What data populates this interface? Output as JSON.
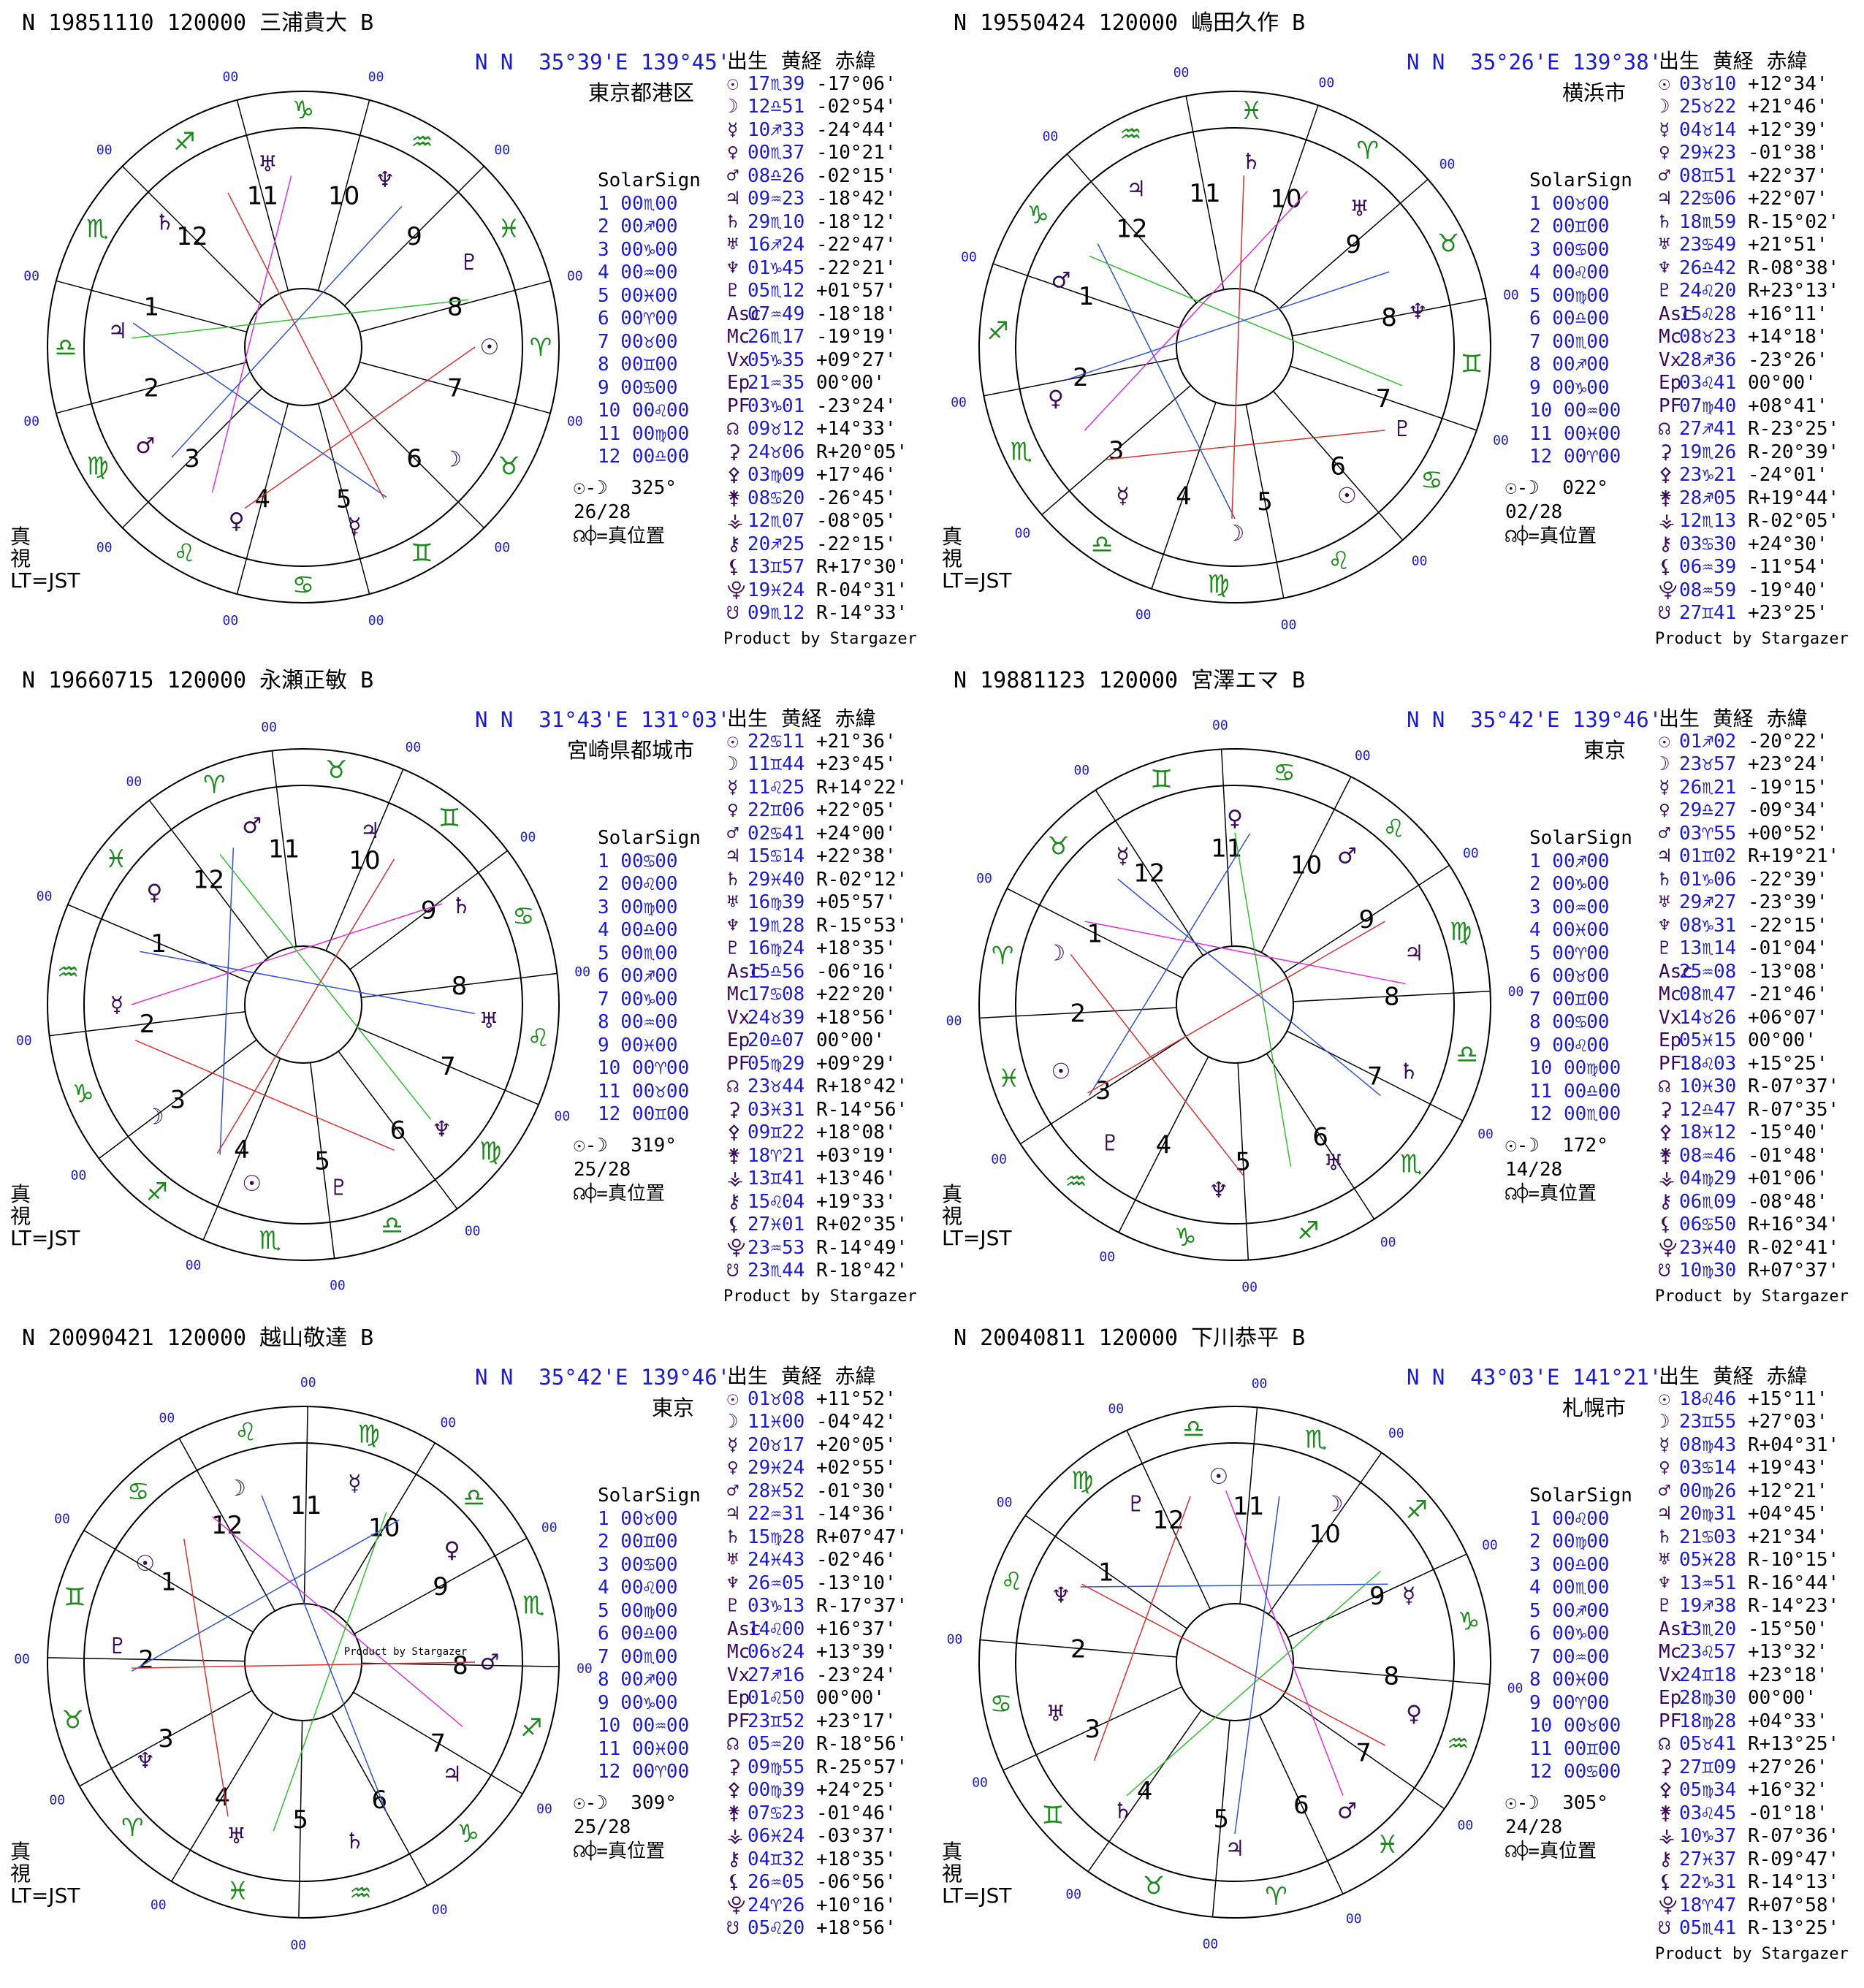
{
  "panels": [
    {
      "title": "N 19851110 120000 三浦貴大 B",
      "coords": "N N  35°39'E 139°45'",
      "place": "東京都港区",
      "houses_top": [
        "10",
        "9",
        "8",
        "7",
        "6",
        "5",
        "4",
        "3",
        "2",
        "1",
        "12",
        "11"
      ],
      "solar_header": "SolarSign",
      "solar": [
        "1 00♏00",
        "2 00♐00",
        "3 00♑00",
        "4 00♒00",
        "5 00♓00",
        "6 00♈00",
        "7 00♉00",
        "8 00♊00",
        "9 00♋00",
        "10 00♌00",
        "11 00♍00",
        "12 00♎00"
      ],
      "aspect": "☉-☽  325°",
      "aspect2": "26/28",
      "aspect3": "☊⌽=真位置",
      "truev": [
        "真",
        "視",
        "LT=JST"
      ],
      "table_head": "出生  黄経  赤緯",
      "rows": [
        [
          "☉",
          "17♏39",
          "-17°06'"
        ],
        [
          "☽",
          "12♎51",
          "-02°54'"
        ],
        [
          "☿",
          "10♐33",
          "-24°44'"
        ],
        [
          "♀",
          "00♏37",
          "-10°21'"
        ],
        [
          "♂",
          "08♎26",
          "-02°15'"
        ],
        [
          "♃",
          "09♒23",
          "-18°42'"
        ],
        [
          "♄",
          "29♏10",
          "-18°12'"
        ],
        [
          "♅",
          "16♐24",
          "-22°47'"
        ],
        [
          "♆",
          "01♑45",
          "-22°21'"
        ],
        [
          "♇",
          "05♏12",
          "+01°57'"
        ],
        [
          "Asc",
          "07♒49",
          "-18°18'"
        ],
        [
          "Mc",
          "26♏17",
          "-19°19'"
        ],
        [
          "Vx",
          "05♑35",
          "+09°27'"
        ],
        [
          "Ep",
          "21♒35",
          "00°00'"
        ],
        [
          "PF",
          "03♑01",
          "-23°24'"
        ],
        [
          "☊",
          "09♉12",
          "+14°33'"
        ],
        [
          "⚳",
          "24♉06",
          "R+20°05'"
        ],
        [
          "⚴",
          "03♍09",
          "+17°46'"
        ],
        [
          "⚵",
          "08♋20",
          "-26°45'"
        ],
        [
          "⚶",
          "12♏07",
          "-08°05'"
        ],
        [
          "⚷",
          "20♐25",
          "-22°15'"
        ],
        [
          "⚸",
          "13♊57",
          "R+17°30'"
        ],
        [
          "⯓",
          "19♓24",
          "R-04°31'"
        ],
        [
          "☋",
          "09♏12",
          "R-14°33'"
        ]
      ],
      "footer": "Product by Stargazer"
    },
    {
      "title": "N 19550424 120000 嶋田久作 B",
      "coords": "N N  35°26'E 139°38'",
      "place": "横浜市",
      "houses_top": [
        "10",
        "9",
        "8",
        "7",
        "6",
        "5",
        "4",
        "3",
        "2",
        "1",
        "12",
        "11"
      ],
      "solar_header": "SolarSign",
      "solar": [
        "1 00♉00",
        "2 00♊00",
        "3 00♋00",
        "4 00♌00",
        "5 00♍00",
        "6 00♎00",
        "7 00♏00",
        "8 00♐00",
        "9 00♑00",
        "10 00♒00",
        "11 00♓00",
        "12 00♈00"
      ],
      "aspect": "☉-☽  022°",
      "aspect2": "02/28",
      "aspect3": "☊⌽=真位置",
      "truev": [
        "真",
        "視",
        "LT=JST"
      ],
      "table_head": "出生  黄経  赤緯",
      "rows": [
        [
          "☉",
          "03♉10",
          "+12°34'"
        ],
        [
          "☽",
          "25♉22",
          "+21°46'"
        ],
        [
          "☿",
          "04♉14",
          "+12°39'"
        ],
        [
          "♀",
          "29♓23",
          "-01°38'"
        ],
        [
          "♂",
          "08♊51",
          "+22°37'"
        ],
        [
          "♃",
          "22♋06",
          "+22°07'"
        ],
        [
          "♄",
          "18♏59",
          "R-15°02'"
        ],
        [
          "♅",
          "23♋49",
          "+21°51'"
        ],
        [
          "♆",
          "26♎42",
          "R-08°38'"
        ],
        [
          "♇",
          "24♌20",
          "R+23°13'"
        ],
        [
          "Asc",
          "15♌28",
          "+16°11'"
        ],
        [
          "Mc",
          "08♉23",
          "+14°18'"
        ],
        [
          "Vx",
          "28♐36",
          "-23°26'"
        ],
        [
          "Ep",
          "03♌41",
          "00°00'"
        ],
        [
          "PF",
          "07♍40",
          "+08°41'"
        ],
        [
          "☊",
          "27♐41",
          "R-23°25'"
        ],
        [
          "⚳",
          "19♏26",
          "R-20°39'"
        ],
        [
          "⚴",
          "23♑21",
          "-24°01'"
        ],
        [
          "⚵",
          "28♐05",
          "R+19°44'"
        ],
        [
          "⚶",
          "12♏13",
          "R-02°05'"
        ],
        [
          "⚷",
          "03♋30",
          "+24°30'"
        ],
        [
          "⚸",
          "06♒39",
          "-11°54'"
        ],
        [
          "⯓",
          "08♒59",
          "-19°40'"
        ],
        [
          "☋",
          "27♊41",
          "+23°25'"
        ]
      ],
      "footer": "Product by Stargazer"
    },
    {
      "title": "N 19660715 120000 永瀬正敏 B",
      "coords": "N N  31°43'E 131°03'",
      "place": "宮崎県都城市",
      "houses_top": [
        "10",
        "9",
        "8",
        "7",
        "6",
        "5",
        "4",
        "3",
        "2",
        "1",
        "12",
        "11"
      ],
      "solar_header": "SolarSign",
      "solar": [
        "1 00♋00",
        "2 00♌00",
        "3 00♍00",
        "4 00♎00",
        "5 00♏00",
        "6 00♐00",
        "7 00♑00",
        "8 00♒00",
        "9 00♓00",
        "10 00♈00",
        "11 00♉00",
        "12 00♊00"
      ],
      "aspect": "☉-☽  319°",
      "aspect2": "25/28",
      "aspect3": "☊⌽=真位置",
      "truev": [
        "真",
        "視",
        "LT=JST"
      ],
      "table_head": "出生  黄経  赤緯",
      "rows": [
        [
          "☉",
          "22♋11",
          "+21°36'"
        ],
        [
          "☽",
          "11♊44",
          "+23°45'"
        ],
        [
          "☿",
          "11♌25",
          "R+14°22'"
        ],
        [
          "♀",
          "22♊06",
          "+22°05'"
        ],
        [
          "♂",
          "02♋41",
          "+24°00'"
        ],
        [
          "♃",
          "15♋14",
          "+22°38'"
        ],
        [
          "♄",
          "29♓40",
          "R-02°12'"
        ],
        [
          "♅",
          "16♍39",
          "+05°57'"
        ],
        [
          "♆",
          "19♏28",
          "R-15°53'"
        ],
        [
          "♇",
          "16♍24",
          "+18°35'"
        ],
        [
          "Asc",
          "15♎56",
          "-06°16'"
        ],
        [
          "Mc",
          "17♋08",
          "+22°20'"
        ],
        [
          "Vx",
          "24♉39",
          "+18°56'"
        ],
        [
          "Ep",
          "20♎07",
          "00°00'"
        ],
        [
          "PF",
          "05♍29",
          "+09°29'"
        ],
        [
          "☊",
          "23♉44",
          "R+18°42'"
        ],
        [
          "⚳",
          "03♓31",
          "R-14°56'"
        ],
        [
          "⚴",
          "09♊22",
          "+18°08'"
        ],
        [
          "⚵",
          "18♈21",
          "+03°19'"
        ],
        [
          "⚶",
          "13♊41",
          "+13°46'"
        ],
        [
          "⚷",
          "15♌04",
          "+19°33'"
        ],
        [
          "⚸",
          "27♓01",
          "R+02°35'"
        ],
        [
          "⯓",
          "23♒53",
          "R-14°49'"
        ],
        [
          "☋",
          "23♏44",
          "R-18°42'"
        ]
      ],
      "footer": "Product by Stargazer"
    },
    {
      "title": "N 19881123 120000 宮澤エマ B",
      "coords": "N N  35°42'E 139°46'",
      "place": "東京",
      "houses_top": [
        "10",
        "9",
        "8",
        "7",
        "6",
        "5",
        "4",
        "3",
        "2",
        "1",
        "12",
        "11"
      ],
      "solar_header": "SolarSign",
      "solar": [
        "1 00♐00",
        "2 00♑00",
        "3 00♒00",
        "4 00♓00",
        "5 00♈00",
        "6 00♉00",
        "7 00♊00",
        "8 00♋00",
        "9 00♌00",
        "10 00♍00",
        "11 00♎00",
        "12 00♏00"
      ],
      "aspect": "☉-☽  172°",
      "aspect2": "14/28",
      "aspect3": "☊⌽=真位置",
      "truev": [
        "真",
        "視",
        "LT=JST"
      ],
      "table_head": "出生  黄経  赤緯",
      "rows": [
        [
          "☉",
          "01♐02",
          "-20°22'"
        ],
        [
          "☽",
          "23♉57",
          "+23°24'"
        ],
        [
          "☿",
          "26♏21",
          "-19°15'"
        ],
        [
          "♀",
          "29♎27",
          "-09°34'"
        ],
        [
          "♂",
          "03♈55",
          "+00°52'"
        ],
        [
          "♃",
          "01♊02",
          "R+19°21'"
        ],
        [
          "♄",
          "01♑06",
          "-22°39'"
        ],
        [
          "♅",
          "29♐27",
          "-23°39'"
        ],
        [
          "♆",
          "08♑31",
          "-22°15'"
        ],
        [
          "♇",
          "13♏14",
          "-01°04'"
        ],
        [
          "Asc",
          "25♒08",
          "-13°08'"
        ],
        [
          "Mc",
          "08♏47",
          "-21°46'"
        ],
        [
          "Vx",
          "14♉26",
          "+06°07'"
        ],
        [
          "Ep",
          "05♓15",
          "00°00'"
        ],
        [
          "PF",
          "18♌03",
          "+15°25'"
        ],
        [
          "☊",
          "10♓30",
          "R-07°37'"
        ],
        [
          "⚳",
          "12♎47",
          "R-07°35'"
        ],
        [
          "⚴",
          "18♓12",
          "-15°40'"
        ],
        [
          "⚵",
          "08♒46",
          "-01°48'"
        ],
        [
          "⚶",
          "04♍29",
          "+01°06'"
        ],
        [
          "⚷",
          "06♏09",
          "-08°48'"
        ],
        [
          "⚸",
          "06♋50",
          "R+16°34'"
        ],
        [
          "⯓",
          "23♓40",
          "R-02°41'"
        ],
        [
          "☋",
          "10♍30",
          "R+07°37'"
        ]
      ],
      "footer": "Product by Stargazer"
    },
    {
      "title": "N 20090421 120000 越山敬達 B",
      "coords": "N N  35°42'E 139°46'",
      "place": "東京",
      "houses_top": [
        "10",
        "9",
        "8",
        "7",
        "6",
        "5",
        "4",
        "3",
        "2",
        "1",
        "12",
        "11"
      ],
      "solar_header": "SolarSign",
      "solar": [
        "1 00♉00",
        "2 00♊00",
        "3 00♋00",
        "4 00♌00",
        "5 00♍00",
        "6 00♎00",
        "7 00♏00",
        "8 00♐00",
        "9 00♑00",
        "10 00♒00",
        "11 00♓00",
        "12 00♈00"
      ],
      "aspect": "☉-☽  309°",
      "aspect2": "25/28",
      "aspect3": "☊⌽=真位置",
      "truev": [
        "真",
        "視",
        "LT=JST"
      ],
      "table_head": "出生  黄経  赤緯",
      "rows": [
        [
          "☉",
          "01♉08",
          "+11°52'"
        ],
        [
          "☽",
          "11♓00",
          "-04°42'"
        ],
        [
          "☿",
          "20♉17",
          "+20°05'"
        ],
        [
          "♀",
          "29♓24",
          "+02°55'"
        ],
        [
          "♂",
          "28♓52",
          "-01°30'"
        ],
        [
          "♃",
          "22♒31",
          "-14°36'"
        ],
        [
          "♄",
          "15♍28",
          "R+07°47'"
        ],
        [
          "♅",
          "24♓43",
          "-02°46'"
        ],
        [
          "♆",
          "26♒05",
          "-13°10'"
        ],
        [
          "♇",
          "03♑13",
          "R-17°37'"
        ],
        [
          "Asc",
          "14♌00",
          "+16°37'"
        ],
        [
          "Mc",
          "06♉24",
          "+13°39'"
        ],
        [
          "Vx",
          "27♐16",
          "-23°24'"
        ],
        [
          "Ep",
          "01♌50",
          "00°00'"
        ],
        [
          "PF",
          "23♊52",
          "+23°17'"
        ],
        [
          "☊",
          "05♒20",
          "R-18°56'"
        ],
        [
          "⚳",
          "09♍55",
          "R-25°57'"
        ],
        [
          "⚴",
          "00♍39",
          "+24°25'"
        ],
        [
          "⚵",
          "07♋23",
          "-01°46'"
        ],
        [
          "⚶",
          "06♓24",
          "-03°37'"
        ],
        [
          "⚷",
          "04♊32",
          "+18°35'"
        ],
        [
          "⚸",
          "26♒05",
          "-06°56'"
        ],
        [
          "⯓",
          "24♈26",
          "+10°16'"
        ],
        [
          "☋",
          "05♌20",
          "+18°56'"
        ]
      ],
      "footer": "",
      "inner_note": "Product by Stargazer"
    },
    {
      "title": "N 20040811 120000 下川恭平 B",
      "coords": "N N  43°03'E 141°21'",
      "place": "札幌市",
      "houses_top": [
        "10",
        "9",
        "8",
        "7",
        "6",
        "5",
        "4",
        "3",
        "2",
        "1",
        "12",
        "11"
      ],
      "solar_header": "SolarSign",
      "solar": [
        "1 00♌00",
        "2 00♍00",
        "3 00♎00",
        "4 00♏00",
        "5 00♐00",
        "6 00♑00",
        "7 00♒00",
        "8 00♓00",
        "9 00♈00",
        "10 00♉00",
        "11 00♊00",
        "12 00♋00"
      ],
      "aspect": "☉-☽  305°",
      "aspect2": "24/28",
      "aspect3": "☊⌽=真位置",
      "truev": [
        "真",
        "視",
        "LT=JST"
      ],
      "table_head": "出生  黄経  赤緯",
      "rows": [
        [
          "☉",
          "18♌46",
          "+15°11'"
        ],
        [
          "☽",
          "23♊55",
          "+27°03'"
        ],
        [
          "☿",
          "08♍43",
          "R+04°31'"
        ],
        [
          "♀",
          "03♋14",
          "+19°43'"
        ],
        [
          "♂",
          "00♍26",
          "+12°21'"
        ],
        [
          "♃",
          "20♍31",
          "+04°45'"
        ],
        [
          "♄",
          "21♋03",
          "+21°34'"
        ],
        [
          "♅",
          "05♓28",
          "R-10°15'"
        ],
        [
          "♆",
          "13♒51",
          "R-16°44'"
        ],
        [
          "♇",
          "19♐38",
          "R-14°23'"
        ],
        [
          "Asc",
          "13♏20",
          "-15°50'"
        ],
        [
          "Mc",
          "23♌57",
          "+13°32'"
        ],
        [
          "Vx",
          "24♊18",
          "+23°18'"
        ],
        [
          "Ep",
          "28♍30",
          "00°00'"
        ],
        [
          "PF",
          "18♍28",
          "+04°33'"
        ],
        [
          "☊",
          "05♉41",
          "R+13°25'"
        ],
        [
          "⚳",
          "27♊09",
          "+27°26'"
        ],
        [
          "⚴",
          "05♍34",
          "+16°32'"
        ],
        [
          "⚵",
          "03♌45",
          "-01°18'"
        ],
        [
          "⚶",
          "10♑37",
          "R-07°36'"
        ],
        [
          "⚷",
          "27♓37",
          "R-09°47'"
        ],
        [
          "⚸",
          "22♑31",
          "R-14°13'"
        ],
        [
          "⯓",
          "18♈47",
          "R+07°58'"
        ],
        [
          "☋",
          "05♏41",
          "R-13°25'"
        ]
      ],
      "footer": "Product by Stargazer"
    }
  ],
  "degree_tick": "00"
}
